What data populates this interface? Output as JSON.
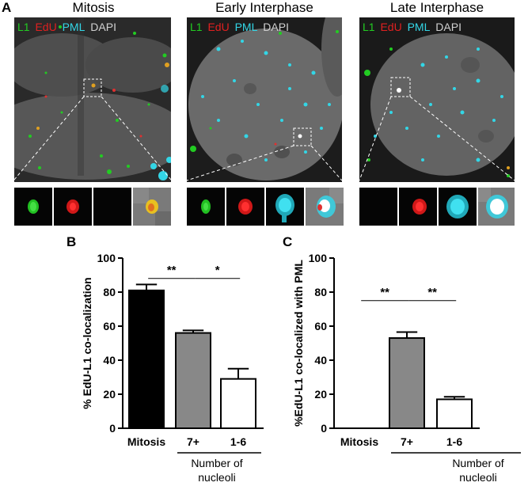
{
  "panel_a": {
    "letter": "A",
    "titles": [
      "Mitosis",
      "Early Interphase",
      "Late Interphase"
    ],
    "legend": [
      {
        "text": "L1",
        "color": "#22cc22"
      },
      {
        "text": "EdU",
        "color": "#e02020"
      },
      {
        "text": "PML",
        "color": "#33d6e6"
      },
      {
        "text": "DAPI",
        "color": "#d0d0d0"
      }
    ]
  },
  "panel_b": {
    "letter": "B",
    "group_label": "Number of\nnucleoli",
    "significance": [
      "**",
      "*"
    ]
  },
  "panel_c": {
    "letter": "C",
    "group_label": "Number of\nnucleoli",
    "significance": [
      "**",
      "**"
    ]
  },
  "chart_data": [
    {
      "type": "bar",
      "categories": [
        "Mitosis",
        "7+",
        "1-6"
      ],
      "values": [
        81,
        56,
        29
      ],
      "errors": [
        3.5,
        1.5,
        6
      ],
      "colors": [
        "#000000",
        "#888888",
        "#ffffff"
      ],
      "ylabel": "% EdU-L1 co-localization",
      "ylim": [
        0,
        100
      ],
      "yticks": [
        "0",
        "20",
        "40",
        "60",
        "80",
        "100"
      ]
    },
    {
      "type": "bar",
      "categories": [
        "Mitosis",
        "7+",
        "1-6"
      ],
      "values": [
        0,
        53,
        17
      ],
      "errors": [
        0,
        3.5,
        1.5
      ],
      "colors": [
        "#000000",
        "#888888",
        "#ffffff"
      ],
      "ylabel": "%EdU-L1 co-localized with PML",
      "ylim": [
        0,
        100
      ],
      "yticks": [
        "0",
        "20",
        "40",
        "60",
        "80",
        "100"
      ]
    }
  ]
}
